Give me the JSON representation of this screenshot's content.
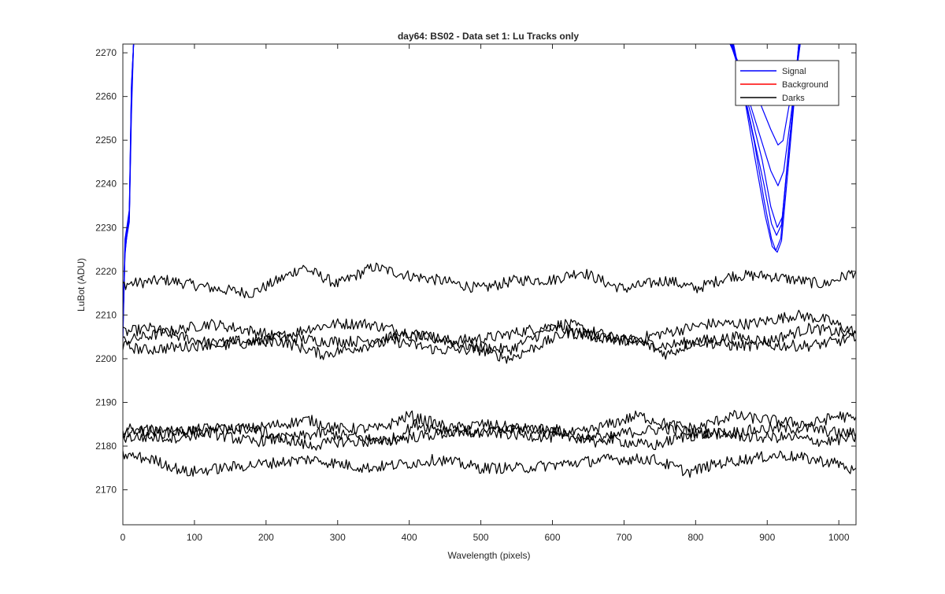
{
  "chart_data": {
    "type": "line",
    "title": "day64: BS02 - Data set 1: Lu Tracks only",
    "xlabel": "Wavelength (pixels)",
    "ylabel": "LuBot (ADU)",
    "xlim": [
      0,
      1024
    ],
    "ylim": [
      2162,
      2272
    ],
    "xticks": [
      0,
      100,
      200,
      300,
      400,
      500,
      600,
      700,
      800,
      900,
      1000
    ],
    "yticks": [
      2170,
      2180,
      2190,
      2200,
      2210,
      2220,
      2230,
      2240,
      2250,
      2260,
      2270
    ],
    "grid": false,
    "legend_position": "top-right",
    "legend": [
      {
        "label": "Signal",
        "color": "#0000ff"
      },
      {
        "label": "Background",
        "color": "#ff0000"
      },
      {
        "label": "Darks",
        "color": "#000000"
      }
    ],
    "series": [
      {
        "group": "Signal",
        "color": "#0000ff",
        "points": [
          [
            0,
            2204
          ],
          [
            3,
            2224
          ],
          [
            6,
            2229
          ],
          [
            9,
            2232
          ],
          [
            12,
            2258
          ],
          [
            15,
            2272
          ]
        ]
      },
      {
        "group": "Signal",
        "color": "#0000ff",
        "points": [
          [
            0,
            2206
          ],
          [
            3,
            2226
          ],
          [
            6,
            2230
          ],
          [
            9,
            2233
          ],
          [
            12,
            2261
          ],
          [
            15,
            2272
          ]
        ]
      },
      {
        "group": "Signal",
        "color": "#0000ff",
        "points": [
          [
            0,
            2208
          ],
          [
            3,
            2225
          ],
          [
            6,
            2228
          ],
          [
            9,
            2231
          ],
          [
            12,
            2256
          ],
          [
            15,
            2272
          ]
        ]
      },
      {
        "group": "Signal",
        "color": "#0000ff",
        "points": [
          [
            0,
            2205
          ],
          [
            3,
            2227
          ],
          [
            6,
            2231
          ],
          [
            9,
            2234
          ],
          [
            12,
            2263
          ],
          [
            15,
            2272
          ]
        ]
      },
      {
        "group": "Signal",
        "color": "#0000ff",
        "points": [
          [
            0,
            2207
          ],
          [
            3,
            2224
          ],
          [
            6,
            2229
          ],
          [
            9,
            2232
          ],
          [
            12,
            2259
          ],
          [
            15,
            2272
          ]
        ]
      },
      {
        "group": "Signal",
        "color": "#0000ff",
        "points": [
          [
            0,
            2209
          ],
          [
            3,
            2225
          ],
          [
            6,
            2230
          ],
          [
            9,
            2233
          ],
          [
            12,
            2262
          ],
          [
            15,
            2272
          ]
        ]
      },
      {
        "group": "Signal",
        "color": "#0000ff",
        "points": [
          [
            848,
            2272
          ],
          [
            860,
            2268
          ],
          [
            875,
            2263
          ],
          [
            890,
            2258
          ],
          [
            905,
            2252
          ],
          [
            915,
            2249
          ],
          [
            922,
            2250
          ],
          [
            930,
            2257
          ],
          [
            940,
            2266
          ],
          [
            946,
            2272
          ]
        ]
      },
      {
        "group": "Signal",
        "color": "#0000ff",
        "points": [
          [
            849,
            2272
          ],
          [
            862,
            2266
          ],
          [
            877,
            2258
          ],
          [
            892,
            2250
          ],
          [
            905,
            2243
          ],
          [
            915,
            2239
          ],
          [
            923,
            2243
          ],
          [
            932,
            2254
          ],
          [
            941,
            2266
          ],
          [
            946,
            2272
          ]
        ]
      },
      {
        "group": "Signal",
        "color": "#0000ff",
        "points": [
          [
            850,
            2272
          ],
          [
            864,
            2264
          ],
          [
            878,
            2255
          ],
          [
            893,
            2245
          ],
          [
            905,
            2235
          ],
          [
            914,
            2230
          ],
          [
            921,
            2232
          ],
          [
            930,
            2248
          ],
          [
            940,
            2264
          ],
          [
            945,
            2272
          ]
        ]
      },
      {
        "group": "Signal",
        "color": "#0000ff",
        "points": [
          [
            851,
            2272
          ],
          [
            865,
            2263
          ],
          [
            880,
            2252
          ],
          [
            895,
            2240
          ],
          [
            906,
            2231
          ],
          [
            913,
            2228
          ],
          [
            920,
            2231
          ],
          [
            929,
            2246
          ],
          [
            939,
            2263
          ],
          [
            944,
            2272
          ]
        ]
      },
      {
        "group": "Signal",
        "color": "#0000ff",
        "points": [
          [
            852,
            2272
          ],
          [
            866,
            2262
          ],
          [
            882,
            2249
          ],
          [
            896,
            2236
          ],
          [
            906,
            2228
          ],
          [
            912,
            2225
          ],
          [
            919,
            2228
          ],
          [
            928,
            2244
          ],
          [
            938,
            2262
          ],
          [
            944,
            2272
          ]
        ]
      },
      {
        "group": "Signal",
        "color": "#0000ff",
        "points": [
          [
            853,
            2272
          ],
          [
            867,
            2261
          ],
          [
            883,
            2246
          ],
          [
            897,
            2233
          ],
          [
            907,
            2226
          ],
          [
            914,
            2224
          ],
          [
            920,
            2227
          ],
          [
            929,
            2243
          ],
          [
            939,
            2261
          ],
          [
            944,
            2272
          ]
        ]
      },
      {
        "group": "Darks",
        "color": "#000000",
        "points": [
          [
            0,
            2217
          ],
          [
            60,
            2218
          ],
          [
            130,
            2216
          ],
          [
            180,
            2215
          ],
          [
            230,
            2219
          ],
          [
            250,
            2221
          ],
          [
            300,
            2217
          ],
          [
            350,
            2221
          ],
          [
            400,
            2219
          ],
          [
            440,
            2218
          ],
          [
            500,
            2216
          ],
          [
            550,
            2218
          ],
          [
            600,
            2218
          ],
          [
            640,
            2220
          ],
          [
            680,
            2217
          ],
          [
            700,
            2216
          ],
          [
            760,
            2218
          ],
          [
            800,
            2216
          ],
          [
            850,
            2219
          ],
          [
            900,
            2219
          ],
          [
            980,
            2217
          ],
          [
            1024,
            2220
          ]
        ]
      },
      {
        "group": "Darks",
        "color": "#000000",
        "points": [
          [
            0,
            2206
          ],
          [
            40,
            2207
          ],
          [
            80,
            2205
          ],
          [
            140,
            2203
          ],
          [
            200,
            2204
          ],
          [
            260,
            2207
          ],
          [
            300,
            2208
          ],
          [
            340,
            2208
          ],
          [
            400,
            2206
          ],
          [
            460,
            2204
          ],
          [
            520,
            2205
          ],
          [
            580,
            2207
          ],
          [
            620,
            2208
          ],
          [
            660,
            2206
          ],
          [
            700,
            2204
          ],
          [
            760,
            2206
          ],
          [
            820,
            2208
          ],
          [
            880,
            2208
          ],
          [
            940,
            2210
          ],
          [
            980,
            2209
          ],
          [
            1024,
            2206
          ]
        ]
      },
      {
        "group": "Darks",
        "color": "#000000",
        "points": [
          [
            0,
            2204
          ],
          [
            60,
            2206
          ],
          [
            120,
            2208
          ],
          [
            160,
            2207
          ],
          [
            220,
            2205
          ],
          [
            280,
            2204
          ],
          [
            330,
            2204
          ],
          [
            380,
            2205
          ],
          [
            430,
            2205
          ],
          [
            480,
            2203
          ],
          [
            540,
            2202
          ],
          [
            600,
            2207
          ],
          [
            640,
            2206
          ],
          [
            700,
            2204
          ],
          [
            760,
            2203
          ],
          [
            800,
            2204
          ],
          [
            860,
            2205
          ],
          [
            900,
            2204
          ],
          [
            960,
            2207
          ],
          [
            1000,
            2206
          ],
          [
            1024,
            2205
          ]
        ]
      },
      {
        "group": "Darks",
        "color": "#000000",
        "points": [
          [
            0,
            2203
          ],
          [
            30,
            2202
          ],
          [
            100,
            2203
          ],
          [
            160,
            2204
          ],
          [
            220,
            2204
          ],
          [
            280,
            2201
          ],
          [
            340,
            2203
          ],
          [
            380,
            2204
          ],
          [
            440,
            2202
          ],
          [
            500,
            2202
          ],
          [
            540,
            2200
          ],
          [
            580,
            2203
          ],
          [
            620,
            2206
          ],
          [
            660,
            2205
          ],
          [
            720,
            2204
          ],
          [
            760,
            2201
          ],
          [
            800,
            2204
          ],
          [
            850,
            2203
          ],
          [
            900,
            2203
          ],
          [
            960,
            2203
          ],
          [
            1000,
            2204
          ],
          [
            1024,
            2205
          ]
        ]
      },
      {
        "group": "Darks",
        "color": "#000000",
        "points": [
          [
            0,
            2184
          ],
          [
            60,
            2183
          ],
          [
            120,
            2184
          ],
          [
            180,
            2184
          ],
          [
            220,
            2185
          ],
          [
            260,
            2186
          ],
          [
            300,
            2184
          ],
          [
            360,
            2184
          ],
          [
            400,
            2187
          ],
          [
            420,
            2186
          ],
          [
            460,
            2184
          ],
          [
            500,
            2185
          ],
          [
            560,
            2184
          ],
          [
            600,
            2183
          ],
          [
            640,
            2183
          ],
          [
            680,
            2185
          ],
          [
            720,
            2187
          ],
          [
            760,
            2185
          ],
          [
            800,
            2184
          ],
          [
            850,
            2187
          ],
          [
            900,
            2186
          ],
          [
            960,
            2185
          ],
          [
            1000,
            2187
          ],
          [
            1024,
            2186
          ]
        ]
      },
      {
        "group": "Darks",
        "color": "#000000",
        "points": [
          [
            0,
            2183
          ],
          [
            60,
            2184
          ],
          [
            120,
            2183
          ],
          [
            180,
            2181
          ],
          [
            240,
            2182
          ],
          [
            280,
            2183
          ],
          [
            330,
            2182
          ],
          [
            370,
            2181
          ],
          [
            410,
            2185
          ],
          [
            440,
            2184
          ],
          [
            500,
            2183
          ],
          [
            560,
            2184
          ],
          [
            600,
            2184
          ],
          [
            660,
            2181
          ],
          [
            700,
            2183
          ],
          [
            760,
            2184
          ],
          [
            800,
            2183
          ],
          [
            840,
            2183
          ],
          [
            900,
            2184
          ],
          [
            960,
            2184
          ],
          [
            1000,
            2183
          ],
          [
            1024,
            2183
          ]
        ]
      },
      {
        "group": "Darks",
        "color": "#000000",
        "points": [
          [
            0,
            2182
          ],
          [
            80,
            2182
          ],
          [
            140,
            2184
          ],
          [
            180,
            2184
          ],
          [
            220,
            2182
          ],
          [
            260,
            2180
          ],
          [
            300,
            2181
          ],
          [
            360,
            2181
          ],
          [
            400,
            2182
          ],
          [
            460,
            2183
          ],
          [
            520,
            2183
          ],
          [
            600,
            2182
          ],
          [
            650,
            2182
          ],
          [
            700,
            2181
          ],
          [
            740,
            2180
          ],
          [
            780,
            2182
          ],
          [
            820,
            2183
          ],
          [
            880,
            2182
          ],
          [
            930,
            2182
          ],
          [
            980,
            2181
          ],
          [
            1024,
            2182
          ]
        ]
      },
      {
        "group": "Darks",
        "color": "#000000",
        "points": [
          [
            0,
            2178
          ],
          [
            40,
            2177
          ],
          [
            90,
            2174
          ],
          [
            140,
            2175
          ],
          [
            200,
            2176
          ],
          [
            260,
            2177
          ],
          [
            300,
            2176
          ],
          [
            340,
            2175
          ],
          [
            400,
            2176
          ],
          [
            440,
            2177
          ],
          [
            500,
            2175
          ],
          [
            560,
            2175
          ],
          [
            620,
            2176
          ],
          [
            680,
            2177
          ],
          [
            740,
            2177
          ],
          [
            790,
            2174
          ],
          [
            830,
            2176
          ],
          [
            870,
            2177
          ],
          [
            920,
            2178
          ],
          [
            960,
            2177
          ],
          [
            1000,
            2176
          ],
          [
            1024,
            2174
          ]
        ]
      }
    ]
  }
}
